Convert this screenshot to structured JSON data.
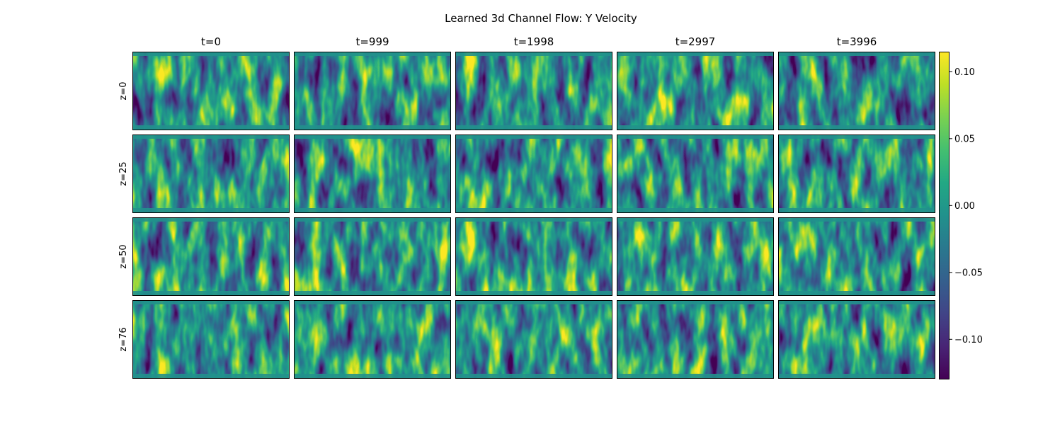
{
  "chart_data": {
    "type": "heatmap",
    "title": "Learned 3d Channel Flow: Y Velocity",
    "columns": [
      "t=0",
      "t=999",
      "t=1998",
      "t=2997",
      "t=3996"
    ],
    "rows": [
      "z=0",
      "z=25",
      "z=50",
      "z=76"
    ],
    "colormap": "viridis",
    "colorbar": {
      "vmin": -0.13,
      "vmax": 0.115,
      "ticks": [
        0.1,
        0.05,
        0.0,
        -0.05,
        -0.1
      ],
      "tick_labels": [
        "0.10",
        "0.05",
        "0.00",
        "−0.05",
        "−0.10"
      ]
    },
    "grid": false,
    "axes_ticks_visible": false
  }
}
